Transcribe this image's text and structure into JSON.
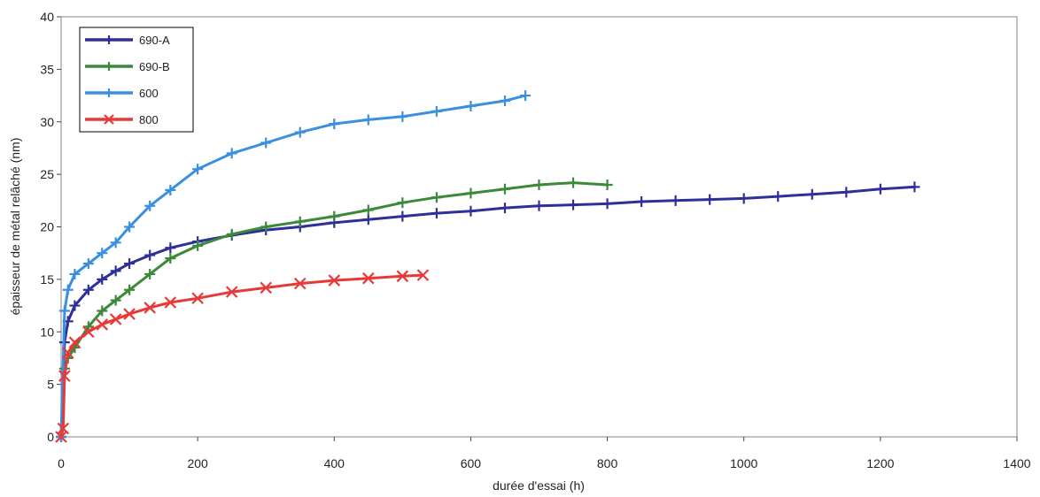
{
  "chart_data": {
    "type": "scatter",
    "title": "",
    "xlabel": "durée d'essai (h)",
    "ylabel": "épaisseur de métal relâché (nm)",
    "xlim": [
      0,
      1400
    ],
    "ylim": [
      0,
      40
    ],
    "x_ticks": [
      "0",
      "200",
      "400",
      "600",
      "800",
      "1000",
      "1200",
      "1400"
    ],
    "y_ticks": [
      "0",
      "5",
      "10",
      "15",
      "20",
      "25",
      "30",
      "35",
      "40"
    ],
    "grid": false,
    "legend_position": "top-left",
    "series": [
      {
        "name": "690-A",
        "color": "#2f2f9a",
        "marker": "plus",
        "points": [
          [
            0,
            0
          ],
          [
            5,
            9
          ],
          [
            10,
            11
          ],
          [
            20,
            12.5
          ],
          [
            40,
            14
          ],
          [
            60,
            15
          ],
          [
            80,
            15.8
          ],
          [
            100,
            16.5
          ],
          [
            130,
            17.3
          ],
          [
            160,
            18
          ],
          [
            200,
            18.6
          ],
          [
            250,
            19.2
          ],
          [
            300,
            19.7
          ],
          [
            350,
            20
          ],
          [
            400,
            20.4
          ],
          [
            450,
            20.7
          ],
          [
            500,
            21
          ],
          [
            550,
            21.3
          ],
          [
            600,
            21.5
          ],
          [
            650,
            21.8
          ],
          [
            700,
            22
          ],
          [
            750,
            22.1
          ],
          [
            800,
            22.2
          ],
          [
            850,
            22.4
          ],
          [
            900,
            22.5
          ],
          [
            950,
            22.6
          ],
          [
            1000,
            22.7
          ],
          [
            1050,
            22.9
          ],
          [
            1100,
            23.1
          ],
          [
            1150,
            23.3
          ],
          [
            1200,
            23.6
          ],
          [
            1250,
            23.8
          ]
        ]
      },
      {
        "name": "690-B",
        "color": "#3a8a3a",
        "marker": "plus",
        "points": [
          [
            0,
            0
          ],
          [
            5,
            6.5
          ],
          [
            10,
            7.5
          ],
          [
            20,
            8.5
          ],
          [
            40,
            10.5
          ],
          [
            60,
            12
          ],
          [
            80,
            13
          ],
          [
            100,
            14
          ],
          [
            130,
            15.5
          ],
          [
            160,
            17
          ],
          [
            200,
            18.2
          ],
          [
            250,
            19.3
          ],
          [
            300,
            20
          ],
          [
            350,
            20.5
          ],
          [
            400,
            21
          ],
          [
            450,
            21.6
          ],
          [
            500,
            22.3
          ],
          [
            550,
            22.8
          ],
          [
            600,
            23.2
          ],
          [
            650,
            23.6
          ],
          [
            700,
            24
          ],
          [
            750,
            24.2
          ],
          [
            800,
            24
          ]
        ]
      },
      {
        "name": "600",
        "color": "#3a8fe0",
        "marker": "plus",
        "points": [
          [
            0,
            0
          ],
          [
            5,
            12
          ],
          [
            10,
            14
          ],
          [
            20,
            15.5
          ],
          [
            40,
            16.5
          ],
          [
            60,
            17.5
          ],
          [
            80,
            18.5
          ],
          [
            100,
            20
          ],
          [
            130,
            22
          ],
          [
            160,
            23.5
          ],
          [
            200,
            25.5
          ],
          [
            250,
            27
          ],
          [
            300,
            28
          ],
          [
            350,
            29
          ],
          [
            400,
            29.8
          ],
          [
            450,
            30.2
          ],
          [
            500,
            30.5
          ],
          [
            550,
            31
          ],
          [
            600,
            31.5
          ],
          [
            650,
            32
          ],
          [
            680,
            32.5
          ]
        ]
      },
      {
        "name": "800",
        "color": "#e83838",
        "marker": "x",
        "points": [
          [
            0,
            0
          ],
          [
            3,
            0.8
          ],
          [
            5,
            5.8
          ],
          [
            10,
            8
          ],
          [
            20,
            9
          ],
          [
            40,
            10
          ],
          [
            60,
            10.7
          ],
          [
            80,
            11.2
          ],
          [
            100,
            11.7
          ],
          [
            130,
            12.3
          ],
          [
            160,
            12.8
          ],
          [
            200,
            13.2
          ],
          [
            250,
            13.8
          ],
          [
            300,
            14.2
          ],
          [
            350,
            14.6
          ],
          [
            400,
            14.9
          ],
          [
            450,
            15.1
          ],
          [
            500,
            15.3
          ],
          [
            530,
            15.4
          ]
        ]
      }
    ]
  }
}
